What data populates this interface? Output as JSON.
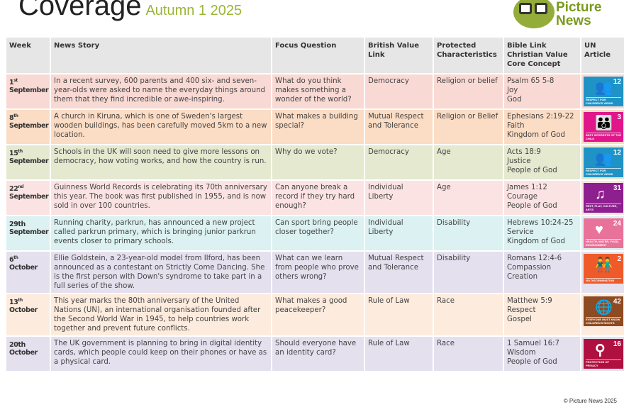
{
  "header": {
    "title": "Coverage",
    "subtitle": "Autumn 1 2025",
    "logo_text": [
      "Picture",
      "News"
    ]
  },
  "columns": [
    "Week",
    "News Story",
    "Focus Question",
    "British Value Link",
    "Protected Characteristics",
    "Bible Link Christian Value Core Concept",
    "UN Article"
  ],
  "rows": [
    {
      "week_num": "1",
      "week_sup": "st",
      "week_month": "September",
      "story": "In a recent survey, 600 parents and 400 six- and seven-year-olds were asked to name the everyday things around them that they find incredible or awe-inspiring.",
      "question": "What do you think makes something a wonder of the world?",
      "value": "Democracy",
      "protected": "Religion or belief",
      "bible": [
        "Psalm 65 5-8",
        "Joy",
        "God"
      ],
      "un": {
        "number": "12",
        "label": "RESPECT FOR CHILDREN'S VIEWS",
        "color": "#1f93c6",
        "icon": "people-speech-icon"
      },
      "color": "#f9d9d3"
    },
    {
      "week_num": "8",
      "week_sup": "th",
      "week_month": "September",
      "story": "A church in Kiruna, which is one of Sweden's largest wooden buildings, has been carefully moved 5km to a new location.",
      "question": "What makes a building special?",
      "value": "Mutual Respect and Tolerance",
      "protected": "Religion or Belief",
      "bible": [
        "Ephesians 2:19-22",
        "Faith",
        "Kingdom of God"
      ],
      "un": {
        "number": "3",
        "label": "BEST INTERESTS OF THE CHILD",
        "color": "#e0168a",
        "icon": "adult-child-icon"
      },
      "color": "#fbdcc4"
    },
    {
      "week_num": "15",
      "week_sup": "th",
      "week_month": "September",
      "story": "Schools in the UK will soon need to give more lessons on democracy, how voting works, and how the country is run.",
      "question": "Why do we vote?",
      "value": "Democracy",
      "protected": "Age",
      "bible": [
        "Acts 18:9",
        "Justice",
        "People of God"
      ],
      "un": {
        "number": "12",
        "label": "RESPECT FOR CHILDREN'S VIEWS",
        "color": "#1f93c6",
        "icon": "people-speech-icon"
      },
      "color": "#e4e9cf"
    },
    {
      "week_num": "22",
      "week_sup": "nd",
      "week_month": "September",
      "story": "Guinness World Records is celebrating its 70th anniversary this year. The book was first published in 1955, and is now sold in over 100 countries.",
      "question": "Can anyone break a record if they try hard enough?",
      "value": "Individual Liberty",
      "protected": "Age",
      "bible": [
        "James 1:12",
        "Courage",
        "People of God"
      ],
      "un": {
        "number": "31",
        "label": "REST, PLAY, CULTURE, ARTS",
        "color": "#8e1f8e",
        "icon": "music-play-icon"
      },
      "color": "#fce3e3"
    },
    {
      "week_num": "29th",
      "week_sup": "",
      "week_month": "September",
      "story": "Running charity, parkrun, has announced a new project called parkrun primary, which is bringing junior parkrun events closer to primary schools.",
      "question": "Can sport bring people closer together?",
      "value": "Individual Liberty",
      "protected": "Disability",
      "bible": [
        "Hebrews 10:24-25",
        "Service",
        "Kingdom of God"
      ],
      "un": {
        "number": "24",
        "label": "HEALTH, WATER, FOOD, ENVIRONMENT",
        "color": "#e9729a",
        "icon": "health-hearts-icon"
      },
      "color": "#dcf1f1"
    },
    {
      "week_num": "6",
      "week_sup": "th",
      "week_month": "October",
      "story": "Ellie Goldstein, a 23-year-old model from Ilford, has been announced as a contestant on Strictly Come Dancing. She is the first person with Down's syndrome to take part in a full series of the show.",
      "question": "What can we learn from people who prove others wrong?",
      "value": "Mutual Respect and Tolerance",
      "protected": "Disability",
      "bible": [
        "Romans 12:4-6",
        "Compassion",
        "Creation"
      ],
      "un": {
        "number": "2",
        "label": "NO DISCRIMINATION",
        "color": "#ef5a2a",
        "icon": "two-children-icon"
      },
      "color": "#e4e0ee"
    },
    {
      "week_num": "13",
      "week_sup": "th",
      "week_month": "October",
      "story": "This year marks the 80th anniversary of the United Nations (UN), an international organisation founded after the Second World War in 1945, to help countries work together and prevent future conflicts.",
      "question": "What makes a good peacekeeper?",
      "value": "Rule of Law",
      "protected": "Race",
      "bible": [
        "Matthew 5:9",
        "Respect",
        "Gospel"
      ],
      "un": {
        "number": "42",
        "label": "EVERYONE MUST KNOW CHILDREN'S RIGHTS",
        "color": "#8e4a20",
        "icon": "globe-people-icon"
      },
      "color": "#fdebdd"
    },
    {
      "week_num": "20th",
      "week_sup": "",
      "week_month": "October",
      "story": "The UK government is planning to bring in digital identity cards, which people could keep on their phones or have as a physical card.",
      "question": "Should everyone have an identity card?",
      "value": "Rule of Law",
      "protected": "Race",
      "bible": [
        "1 Samuel 16:7",
        "Wisdom",
        "People of God"
      ],
      "un": {
        "number": "16",
        "label": "PROTECTION OF PRIVACY",
        "color": "#b0103f",
        "icon": "keyhole-person-icon"
      },
      "color": "#e4e0ee"
    }
  ],
  "footer": {
    "copyright": "© Picture News 2025"
  }
}
